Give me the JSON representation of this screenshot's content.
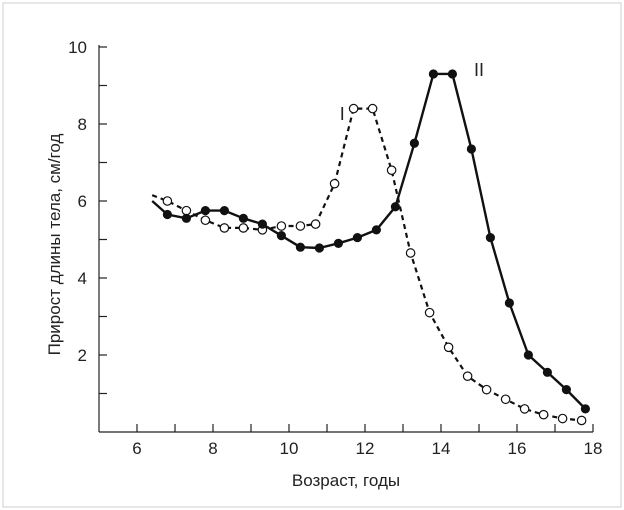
{
  "chart_data": {
    "type": "line",
    "xlabel": "Возраст, годы",
    "ylabel": "Прирост длины тела, см/год",
    "xlim": [
      5,
      18
    ],
    "ylim": [
      0,
      10
    ],
    "xticks": [
      6,
      8,
      10,
      12,
      14,
      16,
      18
    ],
    "yticks": [
      2,
      4,
      6,
      8,
      10
    ],
    "grid": false,
    "series": [
      {
        "name": "I",
        "style": "dashed",
        "marker": "open-circle",
        "color": "#111111",
        "line_start": {
          "x": 6.4,
          "y": 6.15
        },
        "points": [
          {
            "x": 6.8,
            "y": 6.0
          },
          {
            "x": 7.3,
            "y": 5.75
          },
          {
            "x": 7.8,
            "y": 5.5
          },
          {
            "x": 8.3,
            "y": 5.3
          },
          {
            "x": 8.8,
            "y": 5.3
          },
          {
            "x": 9.3,
            "y": 5.25
          },
          {
            "x": 9.8,
            "y": 5.35
          },
          {
            "x": 10.3,
            "y": 5.35
          },
          {
            "x": 10.7,
            "y": 5.4
          },
          {
            "x": 11.2,
            "y": 6.45
          },
          {
            "x": 11.7,
            "y": 8.4
          },
          {
            "x": 12.2,
            "y": 8.4
          },
          {
            "x": 12.7,
            "y": 6.8
          },
          {
            "x": 13.2,
            "y": 4.65
          },
          {
            "x": 13.7,
            "y": 3.1
          },
          {
            "x": 14.2,
            "y": 2.2
          },
          {
            "x": 14.7,
            "y": 1.45
          },
          {
            "x": 15.2,
            "y": 1.1
          },
          {
            "x": 15.7,
            "y": 0.85
          },
          {
            "x": 16.2,
            "y": 0.6
          },
          {
            "x": 16.7,
            "y": 0.45
          },
          {
            "x": 17.2,
            "y": 0.35
          },
          {
            "x": 17.7,
            "y": 0.3
          }
        ]
      },
      {
        "name": "II",
        "style": "solid",
        "marker": "filled-circle",
        "color": "#111111",
        "line_start": {
          "x": 6.4,
          "y": 6.0
        },
        "points": [
          {
            "x": 6.8,
            "y": 5.65
          },
          {
            "x": 7.3,
            "y": 5.55
          },
          {
            "x": 7.8,
            "y": 5.75
          },
          {
            "x": 8.3,
            "y": 5.75
          },
          {
            "x": 8.8,
            "y": 5.55
          },
          {
            "x": 9.3,
            "y": 5.4
          },
          {
            "x": 9.8,
            "y": 5.1
          },
          {
            "x": 10.3,
            "y": 4.8
          },
          {
            "x": 10.8,
            "y": 4.78
          },
          {
            "x": 11.3,
            "y": 4.9
          },
          {
            "x": 11.8,
            "y": 5.05
          },
          {
            "x": 12.3,
            "y": 5.25
          },
          {
            "x": 12.8,
            "y": 5.85
          },
          {
            "x": 13.3,
            "y": 7.5
          },
          {
            "x": 13.8,
            "y": 9.3
          },
          {
            "x": 14.3,
            "y": 9.3
          },
          {
            "x": 14.8,
            "y": 7.35
          },
          {
            "x": 15.3,
            "y": 5.05
          },
          {
            "x": 15.8,
            "y": 3.35
          },
          {
            "x": 16.3,
            "y": 2.0
          },
          {
            "x": 16.8,
            "y": 1.55
          },
          {
            "x": 17.3,
            "y": 1.1
          },
          {
            "x": 17.8,
            "y": 0.6
          }
        ]
      }
    ],
    "annotations": [
      {
        "text": "I",
        "x": 11.4,
        "y": 8.1
      },
      {
        "text": "II",
        "x": 15.0,
        "y": 9.25
      }
    ]
  }
}
